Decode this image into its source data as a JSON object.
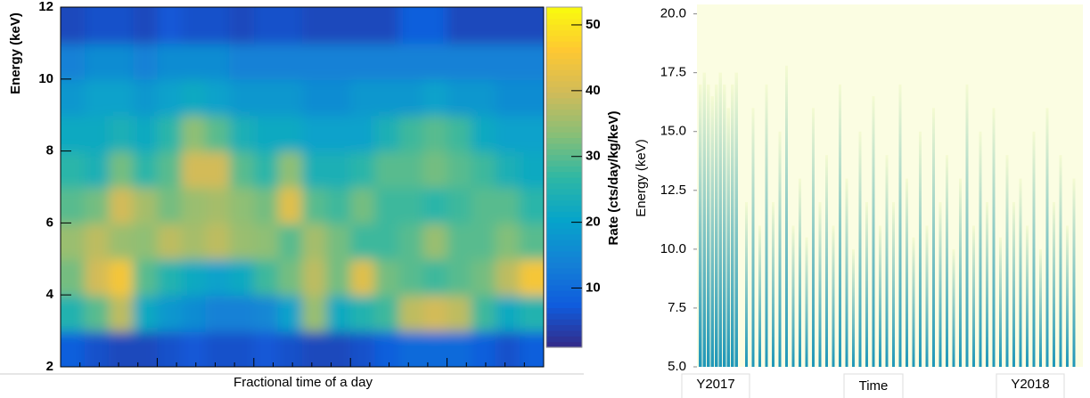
{
  "chart_data": [
    {
      "type": "heatmap",
      "xlabel": "Fractional time of a day",
      "ylabel": "Energy (keV)",
      "ylim": [
        2,
        12
      ],
      "yticks": [
        2,
        4,
        6,
        8,
        10,
        12
      ],
      "colorbar_label": "Rate (cts/day/kg/keV)",
      "zlim": [
        1,
        52.7
      ],
      "zticks": [
        10,
        20,
        30,
        40,
        50
      ],
      "colormap": [
        "#352a87",
        "#0f5cdd",
        "#1481d6",
        "#06a4ca",
        "#2eb7a4",
        "#87bf77",
        "#d1bb59",
        "#fec832",
        "#f9fb0e"
      ],
      "values": [
        [
          8,
          6,
          5,
          5,
          6,
          7,
          6,
          6,
          7,
          6,
          5,
          5,
          6,
          8,
          10,
          10,
          10,
          8,
          6,
          8
        ],
        [
          25,
          30,
          38,
          22,
          18,
          16,
          14,
          14,
          15,
          20,
          35,
          22,
          25,
          28,
          38,
          40,
          38,
          28,
          22,
          25
        ],
        [
          32,
          40,
          45,
          30,
          25,
          22,
          20,
          22,
          28,
          32,
          38,
          32,
          42,
          32,
          30,
          28,
          30,
          32,
          38,
          45
        ],
        [
          35,
          38,
          35,
          34,
          38,
          36,
          38,
          35,
          34,
          30,
          36,
          32,
          28,
          28,
          30,
          35,
          30,
          30,
          33,
          30
        ],
        [
          30,
          32,
          40,
          36,
          32,
          35,
          36,
          34,
          32,
          42,
          30,
          28,
          32,
          28,
          28,
          26,
          28,
          30,
          30,
          26
        ],
        [
          26,
          24,
          32,
          26,
          30,
          40,
          40,
          30,
          26,
          34,
          24,
          24,
          26,
          30,
          30,
          32,
          30,
          28,
          24,
          22
        ],
        [
          22,
          22,
          24,
          22,
          26,
          34,
          30,
          24,
          22,
          22,
          20,
          20,
          20,
          24,
          28,
          30,
          28,
          22,
          20,
          20
        ],
        [
          18,
          20,
          20,
          18,
          20,
          22,
          20,
          18,
          18,
          18,
          16,
          16,
          18,
          18,
          18,
          20,
          18,
          18,
          16,
          16
        ],
        [
          14,
          16,
          16,
          14,
          16,
          16,
          16,
          14,
          14,
          14,
          14,
          14,
          14,
          14,
          14,
          14,
          14,
          14,
          14,
          14
        ],
        [
          5,
          6,
          6,
          5,
          7,
          6,
          6,
          5,
          6,
          6,
          5,
          5,
          5,
          5,
          8,
          8,
          5,
          5,
          5,
          5
        ]
      ]
    },
    {
      "type": "stripes",
      "xlabel": "Time",
      "xlabels": [
        "Y2017",
        "Y2018"
      ],
      "ylabel": "Energy (keV)",
      "ylim": [
        5,
        20.4
      ],
      "yticks": [
        {
          "value": 5,
          "label": "5.0"
        },
        {
          "value": 7.5,
          "label": "7.5"
        },
        {
          "value": 10,
          "label": "10.0"
        },
        {
          "value": 12.5,
          "label": "12.5"
        },
        {
          "value": 15,
          "label": "15.0"
        },
        {
          "value": 17.5,
          "label": "17.5"
        },
        {
          "value": 20,
          "label": "20.0"
        }
      ],
      "colors": [
        "#1f97b8",
        "#f5fbd2"
      ],
      "background": "#fbfde2",
      "values": [
        17,
        17.5,
        17,
        16.5,
        17,
        17.5,
        17,
        16,
        17,
        17.5,
        12,
        16,
        11,
        17,
        12,
        15,
        17.8,
        11,
        13,
        10.5,
        16,
        12,
        14,
        11,
        17,
        13,
        10,
        15,
        12,
        16.5,
        11,
        14,
        12,
        17,
        13,
        10.5,
        15,
        11,
        16,
        12,
        14,
        10,
        13,
        17,
        11,
        15,
        12,
        16,
        10.5,
        14,
        12,
        13,
        11,
        15,
        10,
        16,
        12,
        14,
        11,
        13
      ]
    }
  ]
}
